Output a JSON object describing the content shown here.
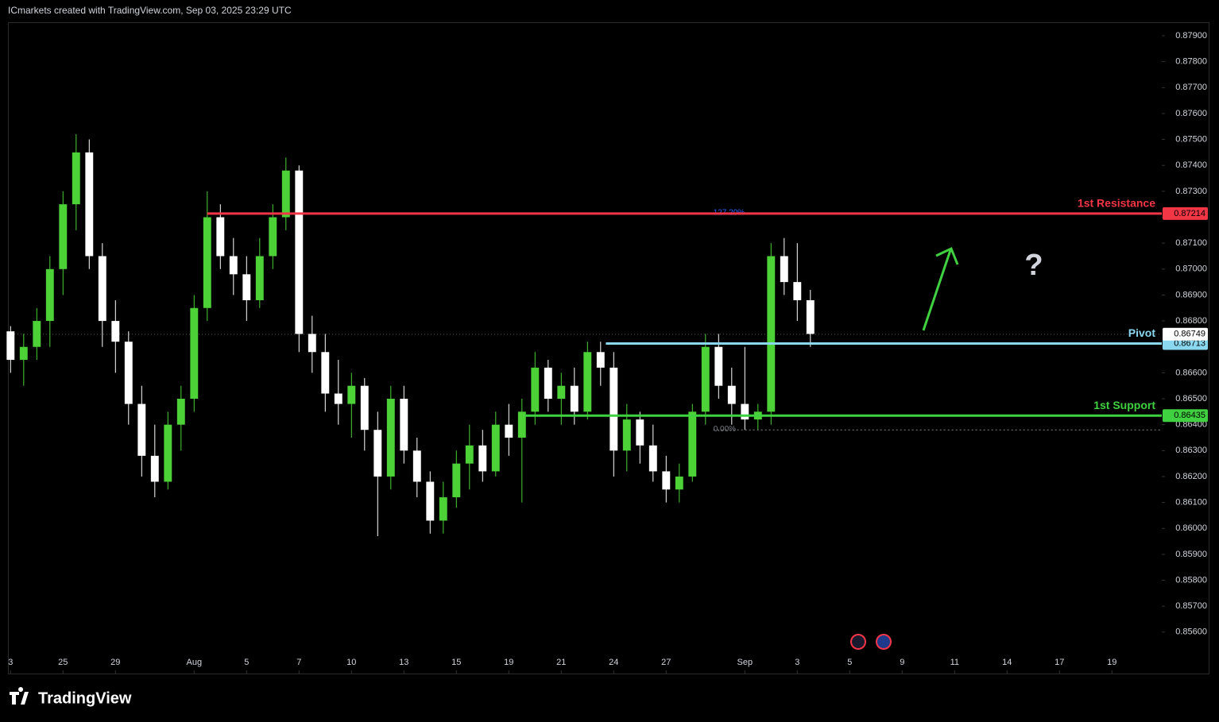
{
  "header": "ICmarkets created with TradingView.com, Sep 03, 2025 23:29 UTC",
  "footer": "TradingView",
  "annotation": "?",
  "chart_data": {
    "type": "candlestick",
    "up_color": "#4cd137",
    "down_color": "#ffffff",
    "xlim": [
      -0.1,
      43.9
    ],
    "ylim": [
      0.85526,
      0.87952
    ],
    "xticks": [
      {
        "value": 0,
        "label": "3"
      },
      {
        "value": 2,
        "label": "25"
      },
      {
        "value": 4,
        "label": "29"
      },
      {
        "value": 7,
        "label": "Aug"
      },
      {
        "value": 9,
        "label": "5"
      },
      {
        "value": 11,
        "label": "7"
      },
      {
        "value": 13,
        "label": "10"
      },
      {
        "value": 15,
        "label": "13"
      },
      {
        "value": 17,
        "label": "15"
      },
      {
        "value": 19,
        "label": "19"
      },
      {
        "value": 21,
        "label": "21"
      },
      {
        "value": 23,
        "label": "24"
      },
      {
        "value": 25,
        "label": "27"
      },
      {
        "value": 28,
        "label": "Sep"
      },
      {
        "value": 30,
        "label": "3"
      },
      {
        "value": 32,
        "label": "5"
      },
      {
        "value": 34,
        "label": "9"
      },
      {
        "value": 36,
        "label": "11"
      },
      {
        "value": 38,
        "label": "14"
      },
      {
        "value": 40,
        "label": "17"
      },
      {
        "value": 42,
        "label": "19"
      }
    ],
    "yticks": [
      {
        "value": 0.879,
        "label": "0.87900"
      },
      {
        "value": 0.878,
        "label": "0.87800"
      },
      {
        "value": 0.877,
        "label": "0.87700"
      },
      {
        "value": 0.876,
        "label": "0.87600"
      },
      {
        "value": 0.875,
        "label": "0.87500"
      },
      {
        "value": 0.874,
        "label": "0.87400"
      },
      {
        "value": 0.873,
        "label": "0.87300"
      },
      {
        "value": 0.872,
        "label": "0.87200"
      },
      {
        "value": 0.871,
        "label": "0.87100"
      },
      {
        "value": 0.87,
        "label": "0.87000"
      },
      {
        "value": 0.869,
        "label": "0.86900"
      },
      {
        "value": 0.868,
        "label": "0.86800"
      },
      {
        "value": 0.867,
        "label": "0.86700"
      },
      {
        "value": 0.866,
        "label": "0.86600"
      },
      {
        "value": 0.865,
        "label": "0.86500"
      },
      {
        "value": 0.864,
        "label": "0.86400"
      },
      {
        "value": 0.863,
        "label": "0.86300"
      },
      {
        "value": 0.862,
        "label": "0.86200"
      },
      {
        "value": 0.861,
        "label": "0.86100"
      },
      {
        "value": 0.86,
        "label": "0.86000"
      },
      {
        "value": 0.859,
        "label": "0.85900"
      },
      {
        "value": 0.858,
        "label": "0.85800"
      },
      {
        "value": 0.857,
        "label": "0.85700"
      },
      {
        "value": 0.856,
        "label": "0.85600"
      }
    ],
    "x": [
      0,
      0.5,
      1,
      1.5,
      2,
      2.5,
      3,
      3.5,
      4,
      4.5,
      5,
      5.5,
      6,
      6.5,
      7,
      7.5,
      8,
      8.5,
      9,
      9.5,
      10,
      10.5,
      11,
      11.5,
      12,
      12.5,
      13,
      13.5,
      14,
      14.5,
      15,
      15.5,
      16,
      16.5,
      17,
      17.5,
      18,
      18.5,
      19,
      19.5,
      20,
      20.5,
      21,
      21.5,
      22,
      22.5,
      23,
      23.5,
      24,
      24.5,
      25,
      25.5,
      26,
      26.5,
      27,
      27.5,
      28,
      28.5,
      29,
      29.5,
      30,
      30.5
    ],
    "open": [
      0.8676,
      0.8665,
      0.867,
      0.868,
      0.87,
      0.8725,
      0.8745,
      0.8705,
      0.868,
      0.8672,
      0.8648,
      0.8628,
      0.8618,
      0.864,
      0.865,
      0.8685,
      0.872,
      0.8705,
      0.8698,
      0.8688,
      0.8705,
      0.872,
      0.8738,
      0.8675,
      0.8668,
      0.8652,
      0.8648,
      0.8655,
      0.8638,
      0.862,
      0.865,
      0.863,
      0.8618,
      0.8603,
      0.8612,
      0.8625,
      0.8632,
      0.8622,
      0.864,
      0.8635,
      0.8645,
      0.8662,
      0.865,
      0.8655,
      0.8645,
      0.8668,
      0.8662,
      0.863,
      0.8642,
      0.8632,
      0.8622,
      0.8615,
      0.862,
      0.8645,
      0.867,
      0.8655,
      0.8648,
      0.8642,
      0.8645,
      0.8705,
      0.8695,
      0.8688
    ],
    "high": [
      0.8678,
      0.8675,
      0.8685,
      0.8705,
      0.873,
      0.8752,
      0.875,
      0.871,
      0.8688,
      0.8676,
      0.8655,
      0.864,
      0.8645,
      0.8655,
      0.869,
      0.873,
      0.8725,
      0.8712,
      0.8705,
      0.8712,
      0.8725,
      0.8743,
      0.874,
      0.8682,
      0.8675,
      0.8665,
      0.866,
      0.8658,
      0.8645,
      0.8655,
      0.8655,
      0.8635,
      0.8622,
      0.8618,
      0.863,
      0.864,
      0.8638,
      0.8645,
      0.8648,
      0.865,
      0.8668,
      0.8665,
      0.866,
      0.8662,
      0.8672,
      0.8672,
      0.8668,
      0.8648,
      0.8645,
      0.864,
      0.8628,
      0.8625,
      0.8648,
      0.8675,
      0.8675,
      0.8662,
      0.867,
      0.8648,
      0.871,
      0.8712,
      0.871,
      0.8692
    ],
    "low": [
      0.866,
      0.8655,
      0.8665,
      0.867,
      0.869,
      0.8715,
      0.87,
      0.867,
      0.866,
      0.864,
      0.862,
      0.8612,
      0.8615,
      0.863,
      0.8645,
      0.868,
      0.87,
      0.869,
      0.868,
      0.8685,
      0.87,
      0.8715,
      0.8668,
      0.866,
      0.8645,
      0.864,
      0.8635,
      0.863,
      0.8597,
      0.8615,
      0.8625,
      0.8612,
      0.8598,
      0.8598,
      0.8608,
      0.8615,
      0.8618,
      0.862,
      0.8628,
      0.861,
      0.864,
      0.8645,
      0.864,
      0.864,
      0.8642,
      0.8655,
      0.862,
      0.8622,
      0.8625,
      0.8618,
      0.861,
      0.861,
      0.8618,
      0.864,
      0.865,
      0.864,
      0.8638,
      0.8638,
      0.864,
      0.869,
      0.868,
      0.867
    ],
    "close": [
      0.8665,
      0.867,
      0.868,
      0.87,
      0.8725,
      0.8745,
      0.8705,
      0.868,
      0.8672,
      0.8648,
      0.8628,
      0.8618,
      0.864,
      0.865,
      0.8685,
      0.872,
      0.8705,
      0.8698,
      0.8688,
      0.8705,
      0.872,
      0.8738,
      0.8675,
      0.8668,
      0.8652,
      0.8648,
      0.8655,
      0.8638,
      0.862,
      0.865,
      0.863,
      0.8618,
      0.8603,
      0.8612,
      0.8625,
      0.8632,
      0.8622,
      0.864,
      0.8635,
      0.8645,
      0.8662,
      0.865,
      0.8655,
      0.8645,
      0.8668,
      0.8662,
      0.863,
      0.8642,
      0.8632,
      0.8622,
      0.8615,
      0.862,
      0.8645,
      0.867,
      0.8655,
      0.8648,
      0.8642,
      0.8645,
      0.8705,
      0.8695,
      0.8688,
      0.8675
    ],
    "last_price": 0.86749,
    "levels": [
      {
        "name": "1st Resistance",
        "value": 0.87214,
        "color": "#f23645",
        "x_start": 7.5
      },
      {
        "name": "Pivot",
        "value": 0.86713,
        "color": "#8ad8f0",
        "x_start": 22.7
      },
      {
        "name": "1st Support",
        "value": 0.86435,
        "color": "#3fd13f",
        "x_start": 19.6
      }
    ],
    "fib": [
      {
        "label": "127.20%",
        "value": 0.87214,
        "color": "#2962ff",
        "x_start": 26.8
      },
      {
        "label": "0.00%",
        "value": 0.8638,
        "color": "#787b86",
        "x_start": 26.8
      }
    ]
  }
}
